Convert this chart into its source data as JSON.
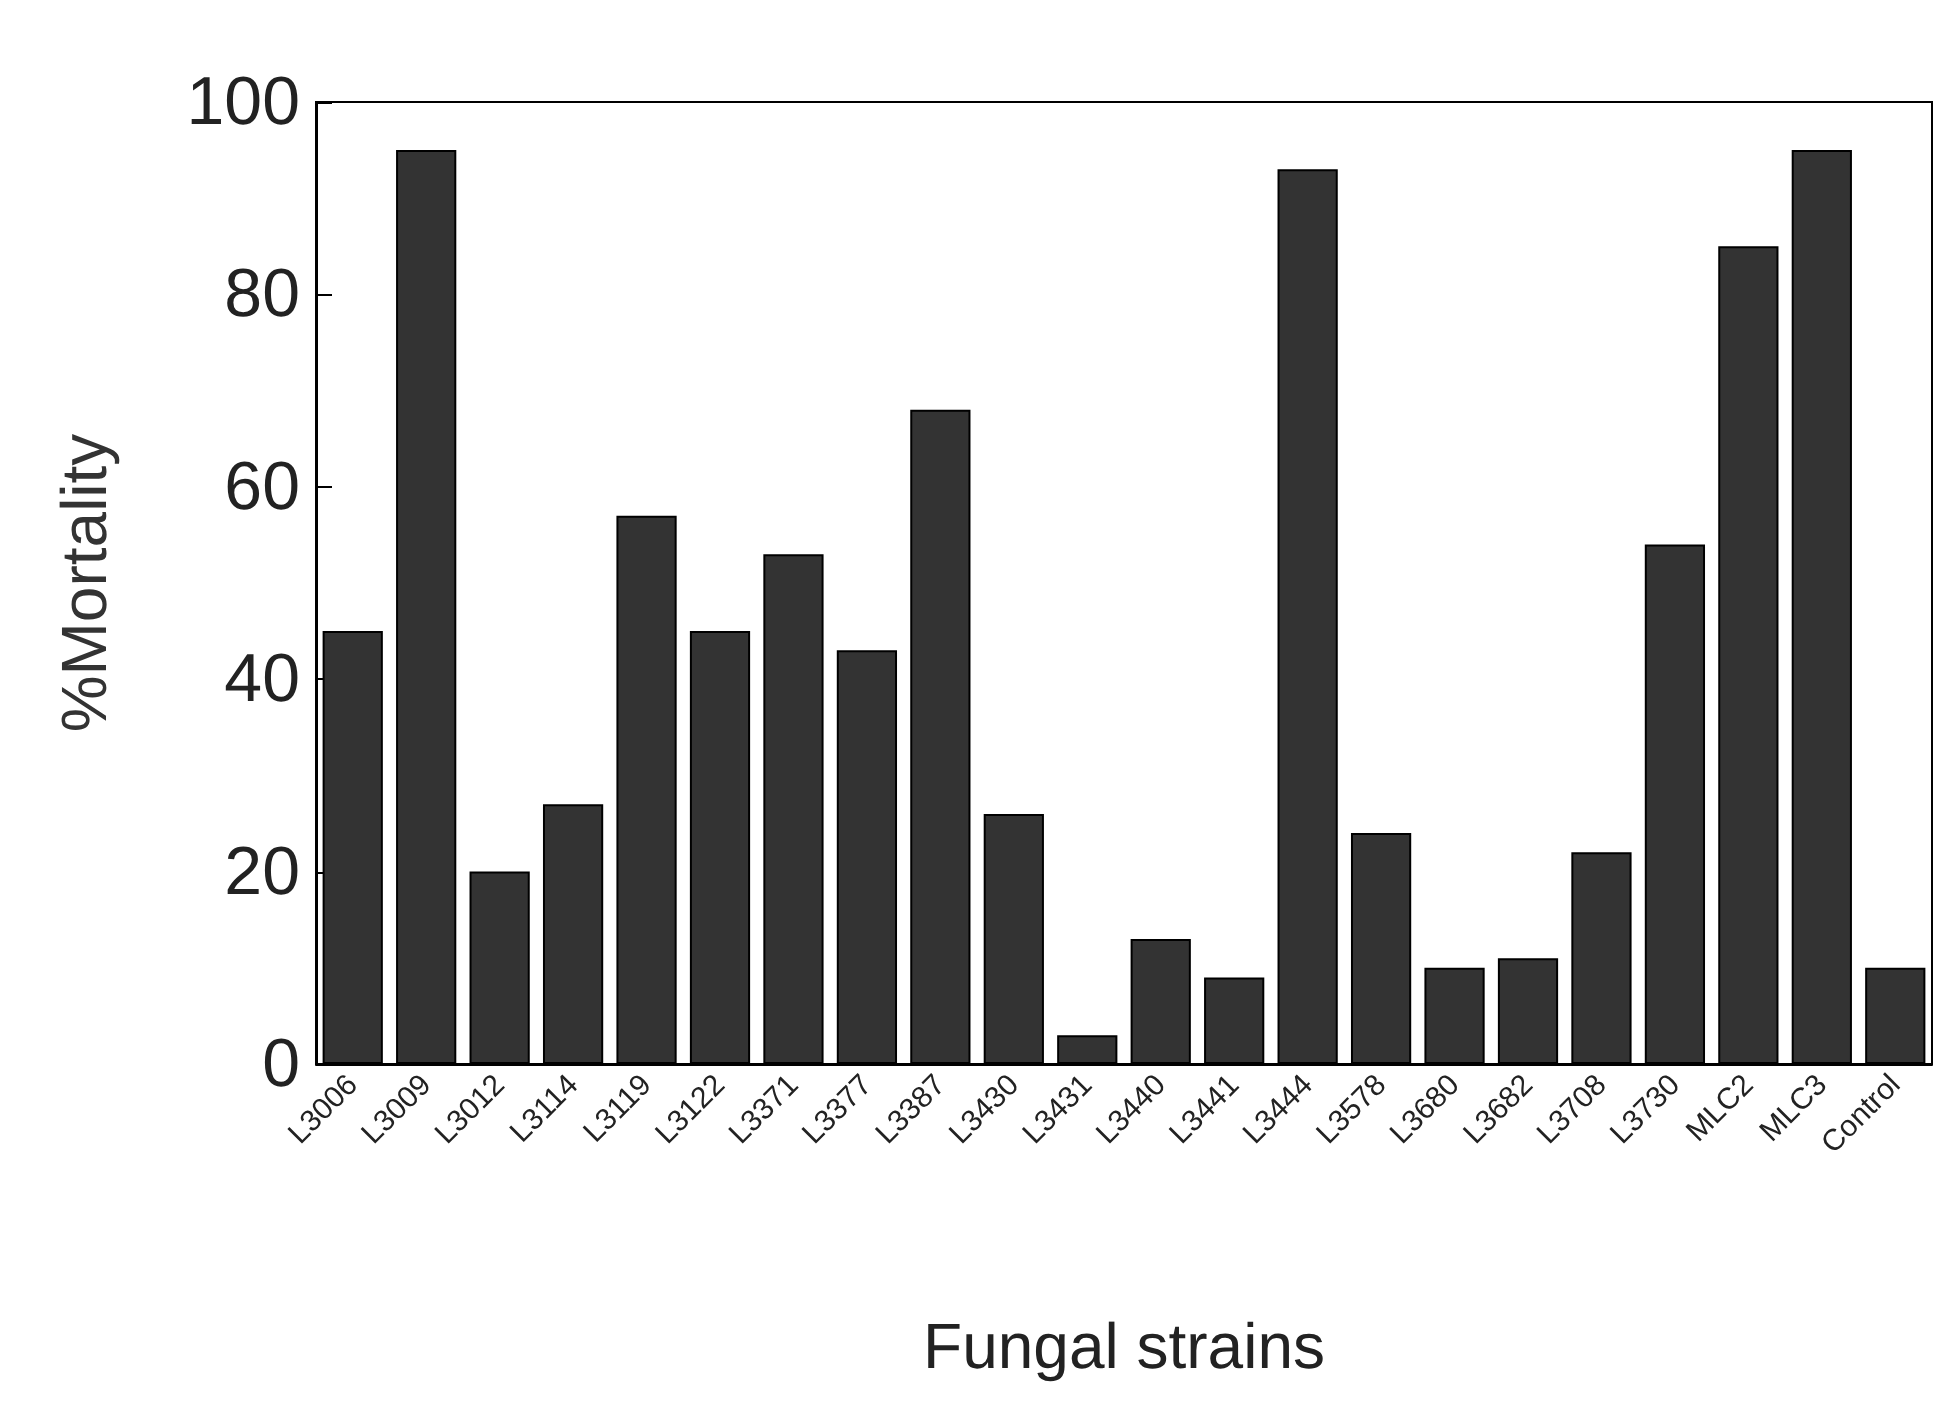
{
  "chart_data": {
    "type": "bar",
    "xlabel": "Fungal strains",
    "ylabel": "%Mortality",
    "categories": [
      "L3006",
      "L3009",
      "L3012",
      "L3114",
      "L3119",
      "L3122",
      "L3371",
      "L3377",
      "L3387",
      "L3430",
      "L3431",
      "L3440",
      "L3441",
      "L3444",
      "L3578",
      "L3680",
      "L3682",
      "L3708",
      "L3730",
      "MLC2",
      "MLC3",
      "Control"
    ],
    "values": [
      45,
      95,
      20,
      27,
      57,
      45,
      53,
      43,
      68,
      26,
      3,
      13,
      9,
      93,
      24,
      10,
      11,
      22,
      54,
      85,
      95,
      10
    ],
    "color": "#333333",
    "ylim": [
      0,
      100
    ],
    "yticks": [
      0,
      20,
      40,
      60,
      80,
      100
    ],
    "grid": false
  }
}
